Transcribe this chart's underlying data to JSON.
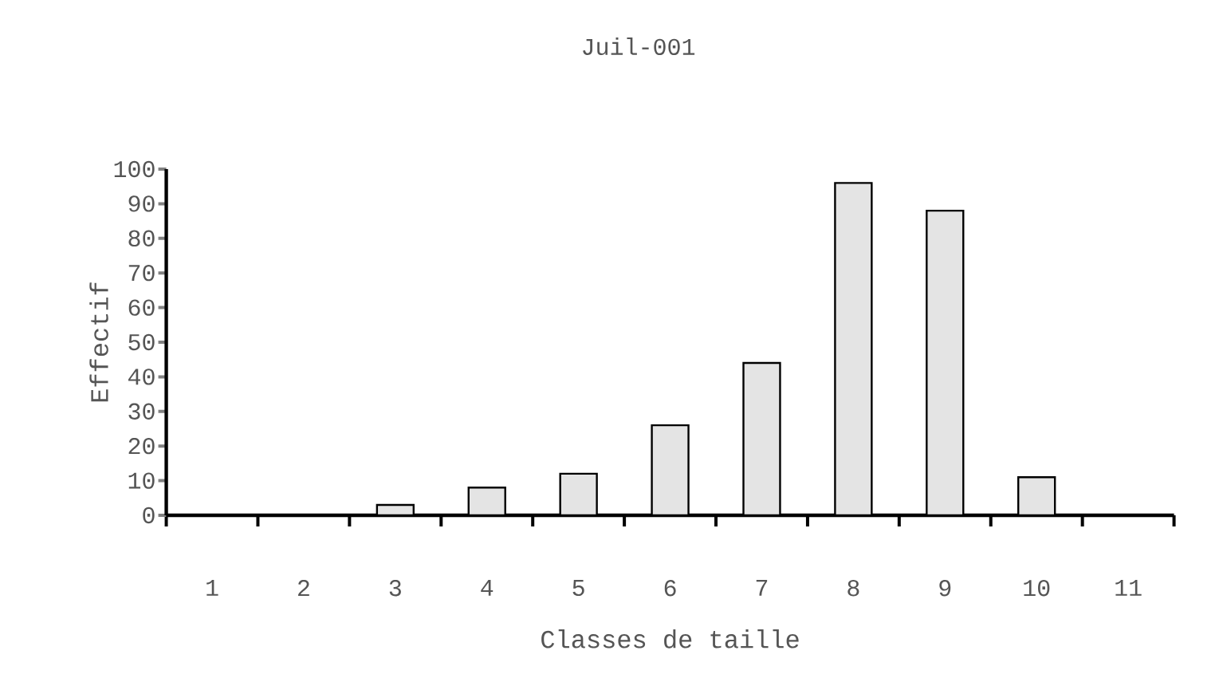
{
  "chart_data": {
    "type": "bar",
    "title": "Juil-001",
    "xlabel": "Classes de taille",
    "ylabel": "Effectif",
    "categories": [
      "1",
      "2",
      "3",
      "4",
      "5",
      "6",
      "7",
      "8",
      "9",
      "10",
      "11"
    ],
    "values": [
      0,
      0,
      3,
      8,
      12,
      26,
      44,
      96,
      88,
      11,
      0
    ],
    "color": "#e4e4e4",
    "ylim": [
      0,
      100
    ],
    "yticks": [
      0,
      10,
      20,
      30,
      40,
      50,
      60,
      70,
      80,
      90,
      100
    ]
  }
}
